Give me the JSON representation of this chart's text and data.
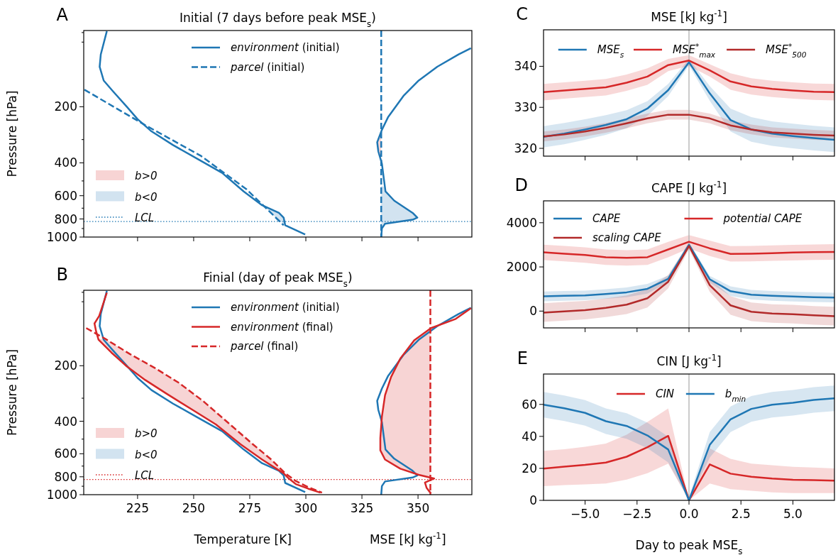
{
  "chart_data": [
    {
      "type": "line",
      "title": "Initial (7 days before peak MSE$_{s}$)",
      "ylabel": "Pressure [hPa]",
      "annotations": [
        "A"
      ],
      "log": "y",
      "tick_labels": "y",
      "legend": "top",
      "xlim": [
        201,
        374
      ],
      "ylim": [
        1000,
        78
      ],
      "xticks": [
        225,
        250,
        275,
        300,
        325,
        350
      ],
      "yticks": [
        {
          "value": 80,
          "label": null
        },
        {
          "value": 90,
          "label": null
        },
        200,
        {
          "value": 300,
          "label": null
        },
        400,
        {
          "value": 500,
          "label": null
        },
        600,
        {
          "value": 700,
          "label": null
        },
        800,
        {
          "value": 900,
          "label": null
        },
        1000
      ],
      "ref_lines": [
        {
          "axis": "y",
          "value": 825,
          "label": "LCL",
          "color": "#1f77b4",
          "line_style": "dotted"
        }
      ],
      "series": [
        {
          "type": "area",
          "name": "b>0",
          "color": "#f7d4d4",
          "x": [
            333.6,
            331.8,
            332.3,
            333.6
          ],
          "values": [
            270,
            310,
            347,
            395
          ]
        },
        {
          "type": "area",
          "name": "b<0",
          "color": "#d2e3f0",
          "x": [
            333.6,
            334.9,
            335.5,
            339.4,
            347.6,
            349.7,
            347.6,
            335.3,
            333.6,
            null,
            280.9,
            288.0,
            290.1,
            290.8,
            286.6,
            284.4
          ],
          "values": [
            530,
            540,
            569,
            638,
            742,
            786,
            807,
            848,
            860,
            null,
            675,
            742,
            786,
            864,
            786,
            742
          ]
        },
        {
          "name": "environment (initial)",
          "color": "#1f77b4",
          "x": [
            211.3,
            208.6,
            208.1,
            209.9,
            214.0,
            220.2,
            225.0,
            231.2,
            240.8,
            251.7,
            262.7,
            272.3,
            280.5,
            288.0,
            290.1,
            290.8,
            299.7,
            null,
            373.6,
            368.1,
            358.6,
            350.3,
            343.5,
            336.6,
            333.9,
            331.8,
            332.3,
            333.9,
            334.6,
            335.5,
            339.4,
            347.6,
            349.7,
            347.6,
            335.3,
            333.9,
            333.6
          ],
          "values": [
            78.6,
            104.8,
            122,
            144.7,
            165,
            200,
            233,
            271,
            321,
            381,
            453,
            569,
            675,
            742,
            786,
            864,
            969,
            null,
            97.1,
            104.8,
            122,
            144.7,
            175,
            228,
            266,
            310,
            347,
            404,
            470,
            569,
            638,
            742,
            786,
            807,
            848,
            898,
            1000
          ]
        },
        {
          "name": "parcel (initial)",
          "color": "#1f77b4",
          "line_style": "dashed",
          "x": [
            201.3,
            228.4,
            253.1,
            273.6,
            290.1,
            null,
            333.6,
            333.6
          ],
          "values": [
            162,
            251,
            366,
            555,
            864,
            null,
            78,
            1000
          ]
        }
      ]
    },
    {
      "type": "line",
      "title": "Finial (day of peak MSE$_{s}$)",
      "ylabel": "Pressure [hPa]",
      "xlabel": "Temperature [K]",
      "annotations": [
        "B",
        "MSE [kJ kg$^{-1}$]"
      ],
      "log": "y",
      "legend": "top",
      "xlim": [
        201,
        374
      ],
      "ylim": [
        1000,
        78
      ],
      "xticks": [
        225,
        250,
        275,
        300,
        325,
        350
      ],
      "yticks": [
        {
          "value": 80,
          "label": null
        },
        {
          "value": 90,
          "label": null
        },
        200,
        {
          "value": 300,
          "label": null
        },
        400,
        {
          "value": 500,
          "label": null
        },
        600,
        {
          "value": 700,
          "label": null
        },
        800,
        {
          "value": 900,
          "label": null
        },
        1000
      ],
      "ref_lines": [
        {
          "axis": "y",
          "value": 827,
          "label": "LCL",
          "color": "#d62728",
          "line_style": "dotted"
        }
      ],
      "series": [
        {
          "type": "area",
          "name": "b>0",
          "color": "#f7d4d4",
          "x": [
            355.5,
            348.3,
            342.1,
            338.0,
            335.3,
            333.9,
            333.2,
            333.2,
            335.3,
            342.1,
            350.3,
            355.5,
            null,
            207.5,
            214.2,
            221.0,
            230.4,
            243.0,
            258.7,
            270.9,
            280.5,
            290.1,
            290.8,
            284.6,
            276.4,
            265.4,
            254.5,
            243.5,
            232.5,
            221.6,
            210.6
          ],
          "values": [
            125,
            145.7,
            183,
            230,
            289,
            378,
            494,
            575,
            645,
            723,
            780,
            800,
            null,
            143,
            173,
            205,
            248,
            313,
            408,
            533,
            645,
            766,
            766,
            645,
            533,
            408,
            313,
            248,
            205,
            173,
            143
          ]
        },
        {
          "type": "area",
          "name": "b<0",
          "color": "#d2e3f0",
          "x": [
            null
          ],
          "values": [
            null
          ]
        },
        {
          "name": "environment (initial)",
          "color": "#1f77b4",
          "x": [
            211.3,
            208.6,
            208.1,
            209.9,
            214.0,
            220.2,
            225.0,
            231.2,
            240.8,
            251.7,
            262.7,
            272.3,
            280.5,
            288.0,
            290.1,
            290.8,
            299.7,
            null,
            373.6,
            368.1,
            358.6,
            350.3,
            343.5,
            336.6,
            333.9,
            331.8,
            332.3,
            333.9,
            334.6,
            335.5,
            339.4,
            347.6,
            349.7,
            347.6,
            335.3,
            333.9,
            333.6
          ],
          "values": [
            78.6,
            104.8,
            122,
            144.7,
            165,
            200,
            233,
            271,
            321,
            381,
            453,
            569,
            675,
            742,
            786,
            864,
            969,
            null,
            97.1,
            104.8,
            122,
            144.7,
            175,
            228,
            266,
            310,
            347,
            404,
            470,
            569,
            638,
            742,
            786,
            807,
            848,
            898,
            1000
          ]
        },
        {
          "name": "environment (final)",
          "color": "#d62728",
          "x": [
            211.3,
            207.9,
            205.8,
            206.5,
            207.6,
            213.4,
            220.2,
            228.4,
            238.0,
            249.0,
            259.9,
            270.9,
            280.5,
            290.1,
            292.1,
            295.5,
            301.0,
            306.5,
            null,
            373.6,
            366.8,
            355.8,
            348.3,
            342.1,
            338.0,
            335.3,
            333.9,
            333.2,
            333.2,
            335.3,
            342.1,
            350.3,
            357.2,
            353.1,
            353.8,
            355.1,
            355.8
          ],
          "values": [
            80.4,
            107.4,
            118,
            130,
            144.6,
            170,
            201.6,
            239,
            284,
            344,
            416,
            533,
            645,
            766,
            811,
            876,
            927,
            975,
            null,
            97.5,
            111.5,
            125,
            145.7,
            183,
            230,
            289,
            378,
            494,
            575,
            645,
            723,
            780,
            817,
            859,
            917,
            963,
            982
          ]
        },
        {
          "name": "parcel (final)",
          "color": "#d62728",
          "line_style": "dashed",
          "x": [
            202.1,
            210.6,
            221.6,
            232.5,
            243.5,
            254.5,
            265.4,
            276.4,
            284.6,
            290.8,
            295.5,
            301.0,
            307.2,
            null,
            355.5,
            355.5
          ],
          "values": [
            125,
            143,
            173,
            205,
            248,
            313,
            408,
            533,
            645,
            766,
            843,
            910,
            975,
            null,
            78,
            1000
          ]
        }
      ]
    },
    {
      "type": "line",
      "title": "MSE [kJ kg$^{-1}$]",
      "annotations": [
        "C"
      ],
      "tick_labels": "y",
      "legend": "top",
      "x": [
        -7,
        -6,
        -5,
        -4,
        -3,
        -2,
        -1,
        0,
        1,
        2,
        3,
        4,
        5,
        6,
        7
      ],
      "xlim": [
        -7,
        7
      ],
      "ylim": [
        318.1,
        348.9
      ],
      "xticks": [
        -5,
        -2.5,
        0,
        2.5,
        5
      ],
      "yticks": [
        320,
        330,
        340
      ],
      "ref_lines": [
        {
          "axis": "x",
          "value": 0,
          "color": "#b0b0b0"
        }
      ],
      "series": [
        {
          "name": "MSE$_{s}$",
          "color": "#1f77b4",
          "values": [
            322.8,
            323.6,
            324.6,
            325.7,
            327.1,
            329.7,
            334.2,
            341.0,
            333.4,
            326.9,
            324.6,
            323.6,
            323.0,
            322.5,
            322.1
          ],
          "lower": [
            320.2,
            321.0,
            322.1,
            323.3,
            324.9,
            327.9,
            332.7,
            340.2,
            331.6,
            324.1,
            321.6,
            320.6,
            320.0,
            319.5,
            319.1
          ],
          "upper": [
            325.4,
            326.2,
            327.1,
            328.1,
            329.3,
            331.5,
            335.7,
            341.8,
            335.2,
            329.7,
            327.6,
            326.6,
            326.0,
            325.5,
            325.1
          ]
        },
        {
          "name": "MSE$^{*}$$_{max}$",
          "color": "#d62728",
          "values": [
            333.7,
            334.1,
            334.5,
            334.9,
            336.0,
            337.5,
            340.3,
            341.4,
            339.0,
            336.3,
            335.1,
            334.5,
            334.1,
            333.8,
            333.7
          ],
          "lower": [
            331.7,
            332.1,
            332.5,
            332.9,
            334.0,
            335.5,
            338.8,
            340.1,
            337.5,
            334.3,
            333.1,
            332.5,
            332.1,
            331.8,
            331.7
          ],
          "upper": [
            335.7,
            336.1,
            336.5,
            336.9,
            338.0,
            339.5,
            341.8,
            342.7,
            340.5,
            338.3,
            337.1,
            336.5,
            336.1,
            335.8,
            335.7
          ]
        },
        {
          "name": "MSE$^{*}$$_{500}$",
          "color": "#b22a2a",
          "values": [
            322.9,
            323.4,
            324.1,
            325.0,
            326.1,
            327.3,
            328.2,
            328.2,
            327.3,
            325.6,
            324.6,
            323.9,
            323.6,
            323.3,
            323.1
          ],
          "lower": [
            321.7,
            322.2,
            322.9,
            323.8,
            324.9,
            326.1,
            327.0,
            327.0,
            326.1,
            324.4,
            323.4,
            322.7,
            322.4,
            322.1,
            321.9
          ],
          "upper": [
            324.1,
            324.6,
            325.3,
            326.2,
            327.3,
            328.5,
            329.4,
            329.4,
            328.5,
            326.8,
            325.8,
            325.1,
            324.8,
            324.5,
            324.3
          ]
        }
      ]
    },
    {
      "type": "line",
      "title": "CAPE [J kg$^{-1}$]",
      "annotations": [
        "D"
      ],
      "tick_labels": "y",
      "legend": "top left",
      "x": [
        -7,
        -6,
        -5,
        -4,
        -3,
        -2,
        -1,
        0,
        1,
        2,
        3,
        4,
        5,
        6,
        7
      ],
      "xlim": [
        -7,
        7
      ],
      "ylim": [
        -760,
        4990
      ],
      "xticks": [
        -5,
        -2.5,
        0,
        2.5,
        5
      ],
      "yticks": [
        0,
        2000,
        4000
      ],
      "ref_lines": [
        {
          "axis": "x",
          "value": 0,
          "color": "#b0b0b0"
        }
      ],
      "series": [
        {
          "name": "CAPE",
          "color": "#1f77b4",
          "values": [
            670,
            690,
            710,
            770,
            850,
            1010,
            1460,
            3000,
            1440,
            900,
            740,
            690,
            660,
            630,
            610
          ],
          "lower": [
            447,
            468,
            490,
            554,
            630,
            791,
            1312,
            2900,
            1291,
            683,
            522,
            468,
            436,
            414,
            393
          ],
          "upper": [
            887,
            908,
            930,
            994,
            1070,
            1231,
            1612,
            3100,
            1591,
            1123,
            962,
            908,
            876,
            854,
            833
          ]
        },
        {
          "name": "potential CAPE",
          "color": "#d62728",
          "values": [
            2660,
            2600,
            2540,
            2440,
            2410,
            2440,
            2790,
            3140,
            2840,
            2590,
            2600,
            2620,
            2650,
            2670,
            2680
          ],
          "lower": [
            2306,
            2252,
            2188,
            2091,
            2059,
            2091,
            2435,
            2840,
            2489,
            2241,
            2252,
            2274,
            2295,
            2317,
            2327
          ],
          "upper": [
            3006,
            2952,
            2888,
            2791,
            2759,
            2791,
            3135,
            3440,
            3189,
            2941,
            2952,
            2974,
            2995,
            3017,
            3027
          ]
        },
        {
          "name": "scaling CAPE",
          "color": "#b22a2a",
          "values": [
            -70,
            -10,
            40,
            150,
            290,
            580,
            1330,
            2950,
            1170,
            260,
            -30,
            -110,
            -140,
            -190,
            -230
          ],
          "lower": [
            -485,
            -431,
            -377,
            -269,
            -130,
            161,
            1033,
            2796,
            872,
            -162,
            -452,
            -528,
            -560,
            -614,
            -646
          ],
          "upper": [
            355,
            409,
            463,
            571,
            710,
            1001,
            1633,
            3096,
            1472,
            678,
            388,
            312,
            280,
            226,
            194
          ]
        }
      ]
    },
    {
      "type": "line",
      "title": "CIN [J kg$^{-1}$]",
      "xlabel": "Day to peak MSE$_{s}$",
      "annotations": [
        "E"
      ],
      "legend": "top",
      "x": [
        -7,
        -6,
        -5,
        -4,
        -3,
        -2,
        -1,
        0,
        1,
        2,
        3,
        4,
        5,
        6,
        7
      ],
      "xlim": [
        -7,
        7
      ],
      "ylim": [
        0,
        79
      ],
      "xticks": [
        {
          "value": -5,
          "label": "−5.0"
        },
        {
          "value": -2.5,
          "label": "−2.5"
        },
        {
          "value": 0,
          "label": "0.0"
        },
        {
          "value": 2.5,
          "label": "2.5"
        },
        {
          "value": 5,
          "label": "5.0"
        }
      ],
      "yticks": [
        0,
        20,
        40,
        60
      ],
      "ref_lines": [
        {
          "axis": "x",
          "value": 0,
          "color": "#b0b0b0"
        }
      ],
      "series": [
        {
          "name": "CIN",
          "color": "#d62728",
          "values": [
            19.9,
            21.1,
            22.2,
            23.6,
            27.3,
            33.2,
            40.3,
            0,
            22.5,
            16.7,
            14.8,
            13.6,
            12.9,
            12.6,
            12.3
          ],
          "lower": [
            8.9,
            9.5,
            10,
            10.5,
            13,
            17,
            23,
            0,
            10.5,
            7,
            6,
            5,
            4.5,
            4.5,
            4.5
          ],
          "upper": [
            31,
            32,
            33.5,
            35.5,
            41,
            49,
            57.5,
            0,
            32.5,
            26,
            23,
            22,
            21,
            20.5,
            20
          ]
        },
        {
          "name": "b$_{min}$",
          "color": "#1f77b4",
          "values": [
            59.8,
            57.6,
            54.7,
            49.5,
            46.5,
            40.6,
            31.8,
            0,
            34.7,
            50.7,
            57.2,
            59.8,
            61.0,
            62.8,
            63.8
          ],
          "lower": [
            51.8,
            49.6,
            46.7,
            41.5,
            38.5,
            32.6,
            23.8,
            0,
            26.7,
            42.7,
            49.2,
            51.8,
            53,
            54.8,
            55.8
          ],
          "upper": [
            67.8,
            65.6,
            62.7,
            57.5,
            54.5,
            48.6,
            39.8,
            2,
            42.7,
            58.7,
            65.2,
            67.8,
            69,
            70.8,
            71.8
          ]
        }
      ]
    }
  ]
}
